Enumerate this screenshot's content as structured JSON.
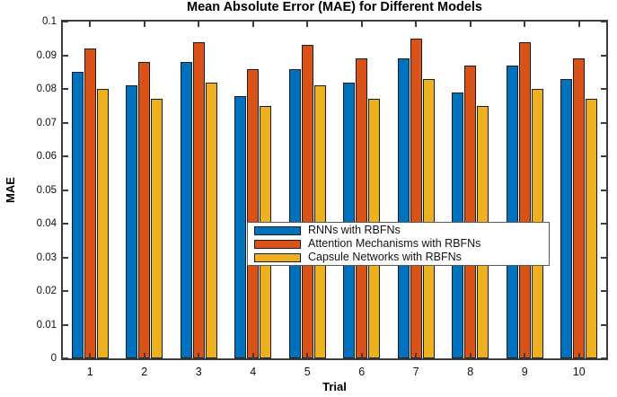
{
  "figure": {
    "title": "Mean Absolute Error (MAE) for Different Models",
    "xlabel": "Trial",
    "ylabel": "MAE"
  },
  "chart_data": {
    "type": "bar",
    "title": "Mean Absolute Error (MAE) for Different Models",
    "xlabel": "Trial",
    "ylabel": "MAE",
    "categories": [
      "1",
      "2",
      "3",
      "4",
      "5",
      "6",
      "7",
      "8",
      "9",
      "10"
    ],
    "series": [
      {
        "name": "RNNs with RBFNs",
        "color": "#0072BD",
        "values": [
          0.085,
          0.081,
          0.088,
          0.078,
          0.086,
          0.082,
          0.089,
          0.079,
          0.087,
          0.083
        ]
      },
      {
        "name": "Attention Mechanisms with RBFNs",
        "color": "#D95319",
        "values": [
          0.092,
          0.088,
          0.094,
          0.086,
          0.093,
          0.089,
          0.095,
          0.087,
          0.094,
          0.089
        ]
      },
      {
        "name": "Capsule Networks with RBFNs",
        "color": "#EDB120",
        "values": [
          0.08,
          0.077,
          0.082,
          0.075,
          0.081,
          0.077,
          0.083,
          0.075,
          0.08,
          0.077
        ]
      }
    ],
    "ylim": [
      0,
      0.1
    ],
    "ytick_values": [
      0,
      0.01,
      0.02,
      0.03,
      0.04,
      0.05,
      0.06,
      0.07,
      0.08,
      0.09,
      0.1
    ],
    "ytick_labels": [
      "0",
      "0.01",
      "0.02",
      "0.03",
      "0.04",
      "0.05",
      "0.06",
      "0.07",
      "0.08",
      "0.09",
      "0.1"
    ],
    "grid": false,
    "legend_position": "inside-center-left",
    "bar_edge_color": "#1c1c1c",
    "axis_color": "#3d3d3d"
  }
}
